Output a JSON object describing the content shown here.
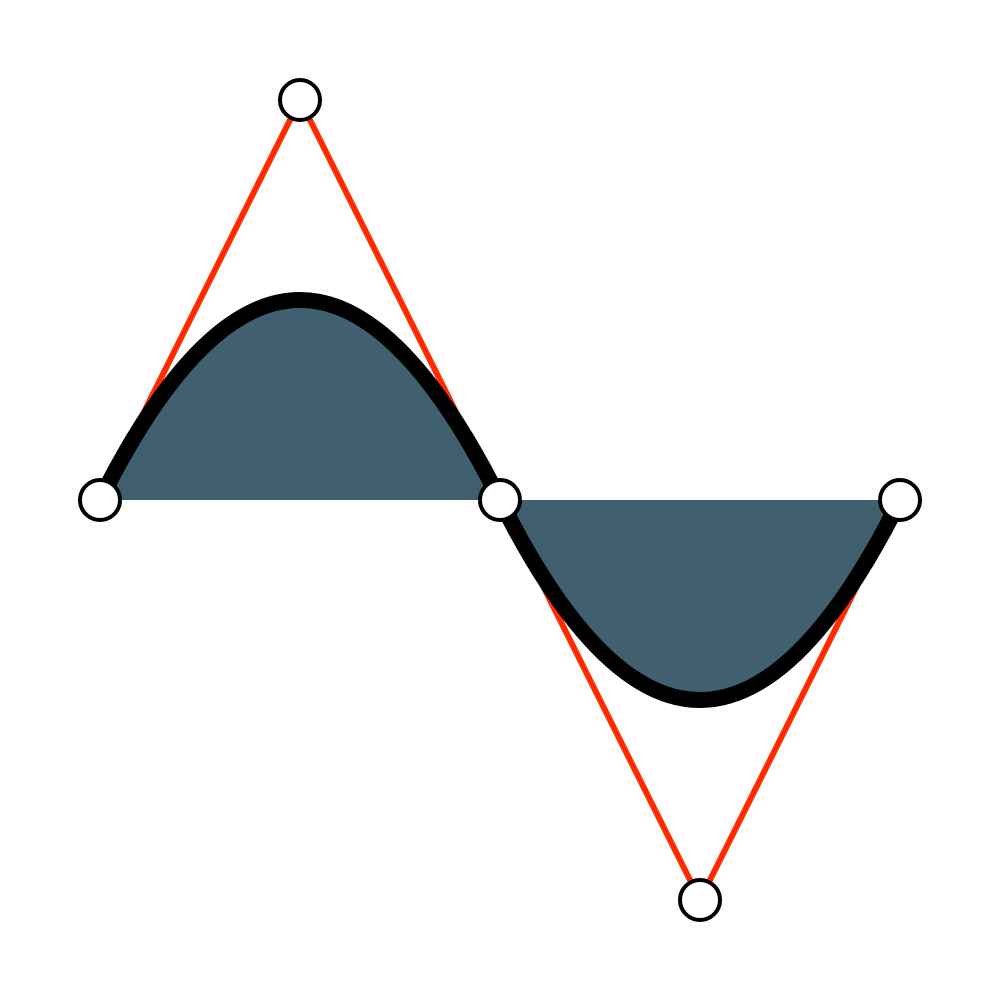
{
  "colors": {
    "background": "#ffffff",
    "fill": "#40606f",
    "curve": "#000000",
    "control_polygon": "#ff2a00",
    "point_fill": "#ffffff",
    "point_stroke": "#000000"
  },
  "diagram": {
    "type": "quadratic-bezier-spline",
    "curve_segments": 2,
    "control_points_count": 5,
    "shows_control_polygon": true,
    "shows_filled_area": true
  }
}
